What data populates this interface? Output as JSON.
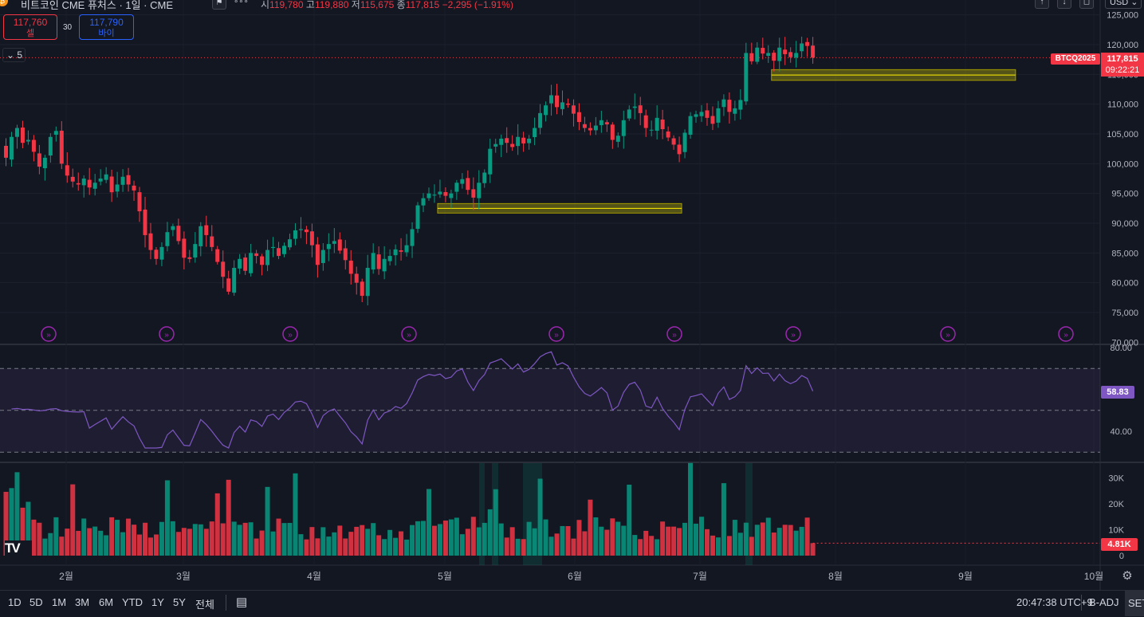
{
  "header": {
    "title": "비트코인 CME 퓨처스 · 1일 · CME",
    "ohlc": [
      {
        "label": "시",
        "value": "119,780"
      },
      {
        "label": "고",
        "value": "119,880"
      },
      {
        "label": "저",
        "value": "115,675"
      },
      {
        "label": "종",
        "value": "117,815"
      }
    ],
    "change": "−2,295 (−1.91%)",
    "sell_price": "117,760",
    "sell_label": "셀",
    "spread": "30",
    "buy_price": "117,790",
    "buy_label": "바이",
    "indicator_toggle": "5",
    "currency": "USD"
  },
  "price_axis": {
    "ticks": [
      "125,000",
      "120,000",
      "115,000",
      "110,000",
      "105,000",
      "100,000",
      "95,000",
      "90,000",
      "85,000",
      "80,000",
      "75,000",
      "70,000"
    ],
    "symbol_tag": "BTCQ2025",
    "last_price": "117,815",
    "countdown": "09:22:21"
  },
  "rsi": {
    "ticks": [
      "80.00",
      "40.00"
    ],
    "value": "58.83"
  },
  "volume": {
    "ticks": [
      "30K",
      "20K",
      "10K",
      "0"
    ],
    "value": "4.81K"
  },
  "time_axis": {
    "labels": [
      "2월",
      "3월",
      "4월",
      "5월",
      "6월",
      "7월",
      "8월",
      "9월",
      "10월"
    ]
  },
  "bottom": {
    "timeframes": [
      "1D",
      "5D",
      "1M",
      "3M",
      "6M",
      "YTD",
      "1Y",
      "5Y",
      "전체"
    ],
    "clock": "20:47:38 UTC+9",
    "badj": "B-ADJ",
    "set": "SET"
  },
  "colors": {
    "up": "#089981",
    "down": "#f23645",
    "rsi_line": "#7e57c2",
    "zone": "#fff000",
    "background": "#131722"
  },
  "chart_data": [
    {
      "type": "candlestick",
      "title": "비트코인 CME 퓨처스 · 1일 · CME",
      "ylim": [
        70000,
        125000
      ],
      "x_labels": [
        "2월",
        "3월",
        "4월",
        "5월",
        "6월",
        "7월",
        "8월",
        "9월",
        "10월"
      ],
      "closes": [
        101000,
        104500,
        106000,
        103500,
        104000,
        102000,
        99500,
        101000,
        104500,
        105500,
        100000,
        98000,
        97000,
        96500,
        97500,
        96000,
        96800,
        97500,
        98200,
        95200,
        96500,
        97800,
        96500,
        95500,
        92000,
        88000,
        85500,
        84000,
        86000,
        88500,
        89500,
        87000,
        84200,
        84000,
        86500,
        89500,
        88000,
        86000,
        83500,
        81000,
        78500,
        82500,
        84000,
        82000,
        85000,
        84500,
        83000,
        85500,
        86000,
        84500,
        86200,
        87300,
        88800,
        89000,
        88500,
        86300,
        83000,
        85500,
        86500,
        87000,
        85400,
        83800,
        81500,
        80000,
        77800,
        82500,
        85000,
        82300,
        84000,
        84500,
        85600,
        85200,
        86300,
        89000,
        93000,
        94200,
        95000,
        94800,
        95300,
        94600,
        95000,
        96800,
        97400,
        95600,
        94300,
        96800,
        98500,
        102500,
        103300,
        104200,
        103500,
        102800,
        104500,
        103400,
        104200,
        106000,
        108500,
        109800,
        111500,
        109500,
        110300,
        109900,
        108400,
        107000,
        106000,
        105600,
        106400,
        107300,
        106600,
        104000,
        104700,
        107300,
        109100,
        109600,
        108500,
        106000,
        105700,
        107700,
        105800,
        104400,
        103200,
        101600,
        105200,
        108000,
        108300,
        108700,
        107700,
        106700,
        109300,
        110800,
        108700,
        109300,
        110700,
        118600,
        117200,
        119500,
        118500,
        118600,
        117300,
        119500,
        118400,
        117900,
        118600,
        120200,
        119780,
        117815
      ],
      "rsi": {
        "overbought": 70,
        "middle": 50,
        "oversold": 30,
        "last": 58.83
      },
      "volume": {
        "last": "4.81K",
        "ylim": [
          0,
          35000
        ]
      },
      "zones": [
        {
          "from_bar": 78,
          "to_bar": 121,
          "price_low": 91700,
          "price_high": 93300
        },
        {
          "from_bar": 138,
          "to_bar": 181,
          "price_low": 114000,
          "price_high": 115800
        }
      ]
    }
  ]
}
